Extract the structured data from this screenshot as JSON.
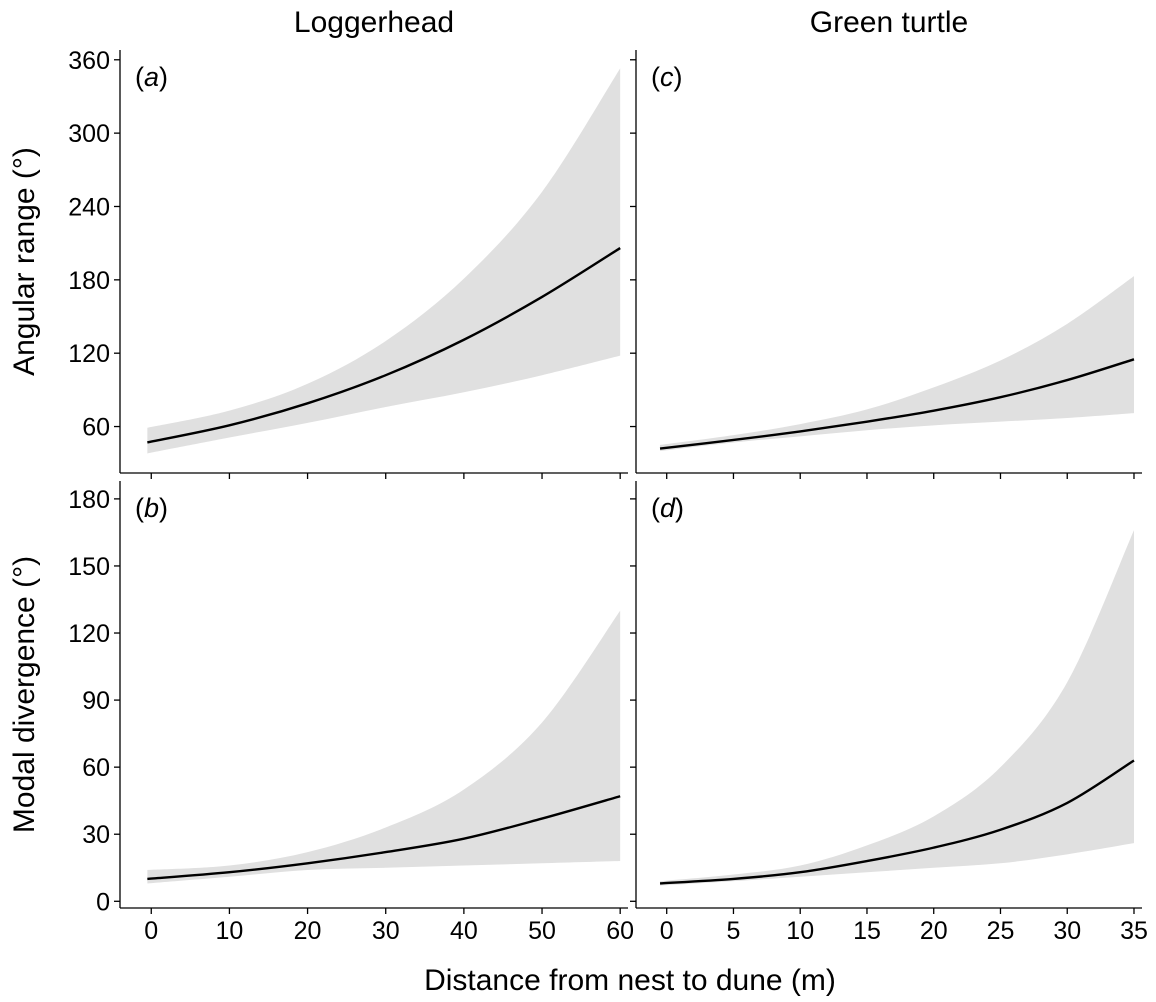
{
  "column_titles": [
    "Loggerhead",
    "Green turtle"
  ],
  "row_ylabels": [
    "Angular range (°)",
    "Modal divergence (°)"
  ],
  "xlabel": "Distance from nest to dune (m)",
  "colors": {
    "band": "#e0e0e0",
    "line": "#000000"
  },
  "chart_data": [
    {
      "type": "area",
      "panel": "a",
      "species": "Loggerhead",
      "ylabel": "Angular range (°)",
      "xlim": [
        -4,
        61
      ],
      "ylim": [
        22,
        368
      ],
      "xticks": [
        0,
        10,
        20,
        30,
        40,
        50,
        60
      ],
      "yticks": [
        60,
        120,
        180,
        240,
        300,
        360
      ],
      "x": [
        -0.5,
        10,
        20,
        30,
        40,
        50,
        60
      ],
      "fit": [
        47,
        61,
        79,
        102,
        131,
        166,
        206
      ],
      "lower": [
        38,
        51,
        63,
        76,
        88,
        102,
        118
      ],
      "upper": [
        59,
        73,
        95,
        130,
        181,
        252,
        353
      ]
    },
    {
      "type": "area",
      "panel": "c",
      "species": "Green turtle",
      "ylabel": "Angular range (°)",
      "xlim": [
        -2.3,
        35.6
      ],
      "ylim": [
        22,
        368
      ],
      "xticks": [
        0,
        5,
        10,
        15,
        20,
        25,
        30,
        35
      ],
      "yticks": [
        60,
        120,
        180,
        240,
        300,
        360
      ],
      "x": [
        -0.5,
        5,
        10,
        15,
        20,
        25,
        30,
        35
      ],
      "fit": [
        42,
        49,
        56,
        64,
        73,
        84,
        98,
        115
      ],
      "lower": [
        40,
        47,
        52,
        57,
        61,
        64,
        67,
        71
      ],
      "upper": [
        45,
        53,
        62,
        74,
        92,
        114,
        144,
        183
      ]
    },
    {
      "type": "area",
      "panel": "b",
      "species": "Loggerhead",
      "ylabel": "Modal divergence (°)",
      "xlim": [
        -4,
        61
      ],
      "ylim": [
        -3,
        188
      ],
      "xticks": [
        0,
        10,
        20,
        30,
        40,
        50,
        60
      ],
      "yticks": [
        0,
        30,
        60,
        90,
        120,
        150,
        180
      ],
      "x": [
        -0.5,
        10,
        20,
        30,
        40,
        50,
        60
      ],
      "fit": [
        10,
        13,
        17,
        22,
        28,
        37,
        47
      ],
      "lower": [
        8,
        11,
        14,
        15,
        16,
        17,
        18
      ],
      "upper": [
        14,
        16,
        22,
        33,
        50,
        80,
        130
      ]
    },
    {
      "type": "area",
      "panel": "d",
      "species": "Green turtle",
      "ylabel": "Modal divergence (°)",
      "xlim": [
        -2.3,
        35.6
      ],
      "ylim": [
        -3,
        188
      ],
      "xticks": [
        0,
        5,
        10,
        15,
        20,
        25,
        30,
        35
      ],
      "yticks": [
        0,
        30,
        60,
        90,
        120,
        150,
        180
      ],
      "x": [
        -0.5,
        5,
        10,
        15,
        20,
        25,
        30,
        35
      ],
      "fit": [
        8,
        10,
        13,
        18,
        24,
        32,
        44,
        63
      ],
      "lower": [
        7,
        9,
        11,
        13,
        15,
        17,
        21,
        26
      ],
      "upper": [
        9,
        12,
        16,
        25,
        38,
        60,
        98,
        166
      ]
    }
  ]
}
